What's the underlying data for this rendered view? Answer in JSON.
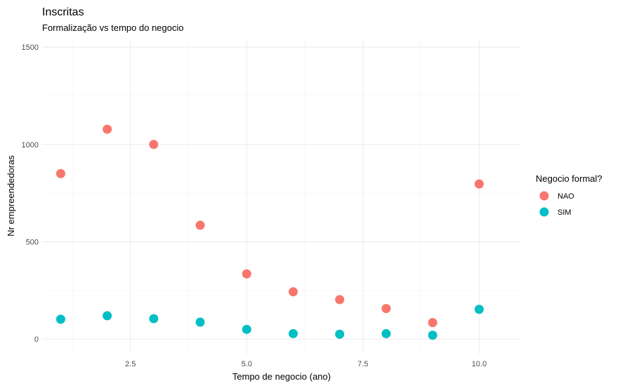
{
  "chart_data": {
    "type": "scatter",
    "title": "Inscritas",
    "subtitle": "Formalização vs tempo do negocio",
    "xlabel": "Tempo de negocio (ano)",
    "ylabel": "Nr empreendedoras",
    "xlim": [
      0.6,
      10.9
    ],
    "ylim": [
      -75,
      1540
    ],
    "x_ticks": [
      2.5,
      5.0,
      7.5,
      10.0
    ],
    "x_tick_labels": [
      "2.5",
      "5.0",
      "7.5",
      "10.0"
    ],
    "y_ticks": [
      0,
      500,
      1000,
      1500
    ],
    "y_tick_labels": [
      "0",
      "500",
      "1000",
      "1500"
    ],
    "grid": true,
    "legend": {
      "title": "Negocio formal?",
      "position": "right"
    },
    "series": [
      {
        "name": "NAO",
        "color": "#F8766D",
        "x": [
          1,
          2,
          3,
          4,
          5,
          6,
          7,
          8,
          9,
          10
        ],
        "y": [
          850,
          1078,
          1000,
          585,
          335,
          243,
          203,
          157,
          85,
          797
        ]
      },
      {
        "name": "SIM",
        "color": "#00BFC4",
        "x": [
          1,
          2,
          3,
          4,
          5,
          6,
          7,
          8,
          9,
          10
        ],
        "y": [
          102,
          120,
          105,
          87,
          50,
          28,
          25,
          28,
          20,
          153
        ]
      }
    ]
  }
}
